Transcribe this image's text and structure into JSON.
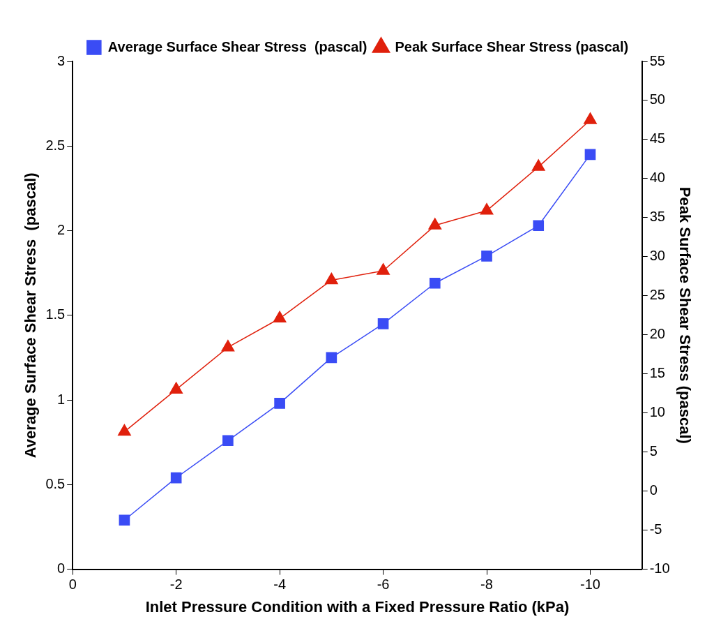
{
  "chart_data": {
    "type": "line",
    "xlabel": "Inlet Pressure Condition with a Fixed Pressure Ratio (kPa)",
    "ylabel": "Average Surface Shear Stress  (pascal)",
    "y2label": "Peak Surface Shear Stress (pascal)",
    "x": [
      -1,
      -2,
      -3,
      -4,
      -5,
      -6,
      -7,
      -8,
      -9,
      -10
    ],
    "xlim": [
      0,
      -11
    ],
    "xticks": [
      0,
      -2,
      -4,
      -6,
      -8,
      -10
    ],
    "ylim": [
      0,
      3
    ],
    "yticks": [
      0,
      0.5,
      1,
      1.5,
      2,
      2.5,
      3
    ],
    "y2lim": [
      -10,
      55
    ],
    "y2ticks": [
      -10,
      -5,
      0,
      5,
      10,
      15,
      20,
      25,
      30,
      35,
      40,
      45,
      50,
      55
    ],
    "series": [
      {
        "name": "Average Surface Shear Stress  (pascal)",
        "color": "#3a4cf5",
        "marker": "square",
        "values": [
          0.29,
          0.54,
          0.76,
          0.98,
          1.25,
          1.45,
          1.69,
          1.85,
          2.03,
          2.45
        ]
      },
      {
        "name": "Peak Surface Shear Stress (pascal)",
        "color": "#e0200c",
        "marker": "triangle",
        "axis": "y2",
        "values": [
          7.6,
          13.0,
          18.4,
          22.1,
          27.0,
          28.2,
          34.0,
          35.9,
          41.5,
          47.5
        ]
      }
    ],
    "grid": false,
    "legend": "top"
  }
}
